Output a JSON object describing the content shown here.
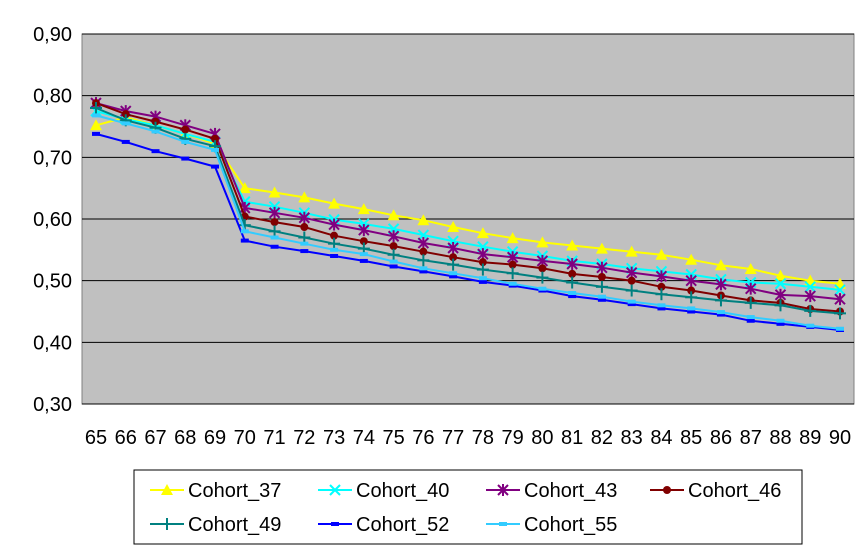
{
  "chart_data": {
    "type": "line",
    "title": "",
    "xlabel": "",
    "ylabel": "",
    "x": [
      65,
      66,
      67,
      68,
      69,
      70,
      71,
      72,
      73,
      74,
      75,
      76,
      77,
      78,
      79,
      80,
      81,
      82,
      83,
      84,
      85,
      86,
      87,
      88,
      89,
      90
    ],
    "x_tick_labels": [
      "65",
      "66",
      "67",
      "68",
      "69",
      "70",
      "71",
      "72",
      "73",
      "74",
      "75",
      "76",
      "77",
      "78",
      "79",
      "80",
      "81",
      "82",
      "83",
      "84",
      "85",
      "86",
      "87",
      "88",
      "89",
      "90"
    ],
    "ylim": [
      0.3,
      0.9
    ],
    "y_ticks": [
      0.3,
      0.4,
      0.5,
      0.6,
      0.7,
      0.8,
      0.9
    ],
    "y_tick_labels": [
      "0,30",
      "0,40",
      "0,50",
      "0,60",
      "0,70",
      "0,80",
      "0,90"
    ],
    "grid": "horizontal",
    "plot_background": "#c0c0c0",
    "legend_position": "bottom",
    "series": [
      {
        "name": "Cohort_37",
        "color": "#ffff00",
        "marker": "triangle",
        "values": [
          0.752,
          0.765,
          0.752,
          0.738,
          0.722,
          0.65,
          0.643,
          0.635,
          0.625,
          0.616,
          0.606,
          0.598,
          0.587,
          0.577,
          0.569,
          0.562,
          0.557,
          0.552,
          0.547,
          0.542,
          0.534,
          0.525,
          0.519,
          0.508,
          0.5,
          0.495
        ]
      },
      {
        "name": "Cohort_40",
        "color": "#00ffff",
        "marker": "x",
        "values": [
          0.775,
          0.762,
          0.752,
          0.738,
          0.725,
          0.628,
          0.62,
          0.61,
          0.599,
          0.592,
          0.584,
          0.574,
          0.564,
          0.555,
          0.547,
          0.54,
          0.532,
          0.527,
          0.52,
          0.515,
          0.51,
          0.502,
          0.497,
          0.495,
          0.49,
          0.485
        ]
      },
      {
        "name": "Cohort_43",
        "color": "#800080",
        "marker": "star",
        "values": [
          0.788,
          0.775,
          0.766,
          0.752,
          0.738,
          0.618,
          0.61,
          0.602,
          0.591,
          0.582,
          0.572,
          0.561,
          0.553,
          0.543,
          0.538,
          0.532,
          0.527,
          0.521,
          0.513,
          0.507,
          0.5,
          0.494,
          0.487,
          0.477,
          0.475,
          0.47
        ]
      },
      {
        "name": "Cohort_46",
        "color": "#800000",
        "marker": "circle",
        "values": [
          0.788,
          0.77,
          0.758,
          0.745,
          0.73,
          0.604,
          0.595,
          0.587,
          0.573,
          0.564,
          0.556,
          0.547,
          0.538,
          0.53,
          0.526,
          0.52,
          0.511,
          0.506,
          0.5,
          0.49,
          0.484,
          0.476,
          0.468,
          0.464,
          0.454,
          0.45
        ]
      },
      {
        "name": "Cohort_49",
        "color": "#008080",
        "marker": "plus",
        "values": [
          0.78,
          0.76,
          0.748,
          0.73,
          0.718,
          0.59,
          0.58,
          0.57,
          0.56,
          0.552,
          0.542,
          0.533,
          0.526,
          0.518,
          0.512,
          0.505,
          0.497,
          0.49,
          0.484,
          0.478,
          0.473,
          0.468,
          0.464,
          0.46,
          0.451,
          0.447
        ]
      },
      {
        "name": "Cohort_52",
        "color": "#0000ff",
        "marker": "dash",
        "values": [
          0.738,
          0.725,
          0.71,
          0.698,
          0.685,
          0.565,
          0.555,
          0.548,
          0.54,
          0.532,
          0.523,
          0.515,
          0.507,
          0.498,
          0.492,
          0.484,
          0.475,
          0.469,
          0.462,
          0.455,
          0.45,
          0.445,
          0.435,
          0.43,
          0.425,
          0.42
        ]
      },
      {
        "name": "Cohort_55",
        "color": "#33ccff",
        "marker": "dash",
        "values": [
          0.768,
          0.755,
          0.742,
          0.725,
          0.712,
          0.58,
          0.57,
          0.56,
          0.55,
          0.543,
          0.531,
          0.52,
          0.512,
          0.504,
          0.495,
          0.487,
          0.48,
          0.474,
          0.466,
          0.46,
          0.455,
          0.449,
          0.441,
          0.435,
          0.427,
          0.422
        ]
      }
    ]
  }
}
